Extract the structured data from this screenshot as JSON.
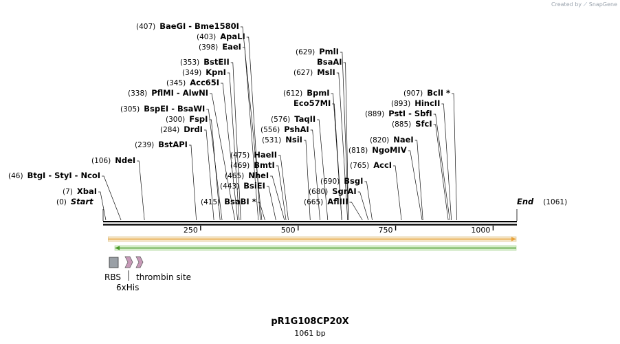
{
  "credit": {
    "prefix": "Created by",
    "brand": "SnapGene"
  },
  "map": {
    "name": "pR1G108CP20X",
    "length_label": "1061 bp",
    "length": 1061
  },
  "ruler": {
    "ticks": [
      250,
      500,
      750,
      1000
    ]
  },
  "ends": {
    "start": {
      "label": "Start",
      "pos": "(0)"
    },
    "end": {
      "label": "End",
      "pos": "(1061)"
    }
  },
  "sites": [
    {
      "pos": 0,
      "pos_text": "(0)",
      "names": "Start",
      "kind": "start"
    },
    {
      "pos": 7,
      "pos_text": "(7)",
      "names": "XbaI"
    },
    {
      "pos": 46,
      "pos_text": "(46)",
      "names": "BtgI  - StyI  - NcoI"
    },
    {
      "pos": 106,
      "pos_text": "(106)",
      "names": "NdeI"
    },
    {
      "pos": 239,
      "pos_text": "(239)",
      "names": "BstAPI"
    },
    {
      "pos": 284,
      "pos_text": "(284)",
      "names": "DrdI"
    },
    {
      "pos": 300,
      "pos_text": "(300)",
      "names": "FspI"
    },
    {
      "pos": 305,
      "pos_text": "(305)",
      "names": "BspEI  - BsaWI"
    },
    {
      "pos": 338,
      "pos_text": "(338)",
      "names": "PflMI  - AlwNI"
    },
    {
      "pos": 345,
      "pos_text": "(345)",
      "names": "Acc65I"
    },
    {
      "pos": 349,
      "pos_text": "(349)",
      "names": "KpnI"
    },
    {
      "pos": 353,
      "pos_text": "(353)",
      "names": "BstEII"
    },
    {
      "pos": 398,
      "pos_text": "(398)",
      "names": "EaeI"
    },
    {
      "pos": 403,
      "pos_text": "(403)",
      "names": "ApaLI"
    },
    {
      "pos": 407,
      "pos_text": "(407)",
      "names": "BaeGI  - Bme1580I"
    },
    {
      "pos": 415,
      "pos_text": "(415)",
      "names": "BsaBI *"
    },
    {
      "pos": 443,
      "pos_text": "(443)",
      "names": "BsiEI"
    },
    {
      "pos": 465,
      "pos_text": "(465)",
      "names": "NheI"
    },
    {
      "pos": 469,
      "pos_text": "(469)",
      "names": "BmtI"
    },
    {
      "pos": 475,
      "pos_text": "(475)",
      "names": "HaeII"
    },
    {
      "pos": 531,
      "pos_text": "(531)",
      "names": "NsiI"
    },
    {
      "pos": 556,
      "pos_text": "(556)",
      "names": "PshAI"
    },
    {
      "pos": 576,
      "pos_text": "(576)",
      "names": "TaqII"
    },
    {
      "pos": 612,
      "pos_text": "(612)",
      "names": "BpmI"
    },
    {
      "pos": 612,
      "pos_text": "",
      "names": "Eco57MI"
    },
    {
      "pos": 627,
      "pos_text": "(627)",
      "names": "MslI"
    },
    {
      "pos": 629,
      "pos_text": "",
      "names": "BsaAI"
    },
    {
      "pos": 629,
      "pos_text": "(629)",
      "names": "PmlI"
    },
    {
      "pos": 665,
      "pos_text": "(665)",
      "names": "AflIII"
    },
    {
      "pos": 680,
      "pos_text": "(680)",
      "names": "SgrAI"
    },
    {
      "pos": 690,
      "pos_text": "(690)",
      "names": "BsgI"
    },
    {
      "pos": 765,
      "pos_text": "(765)",
      "names": "AccI"
    },
    {
      "pos": 818,
      "pos_text": "(818)",
      "names": "NgoMIV"
    },
    {
      "pos": 820,
      "pos_text": "(820)",
      "names": "NaeI"
    },
    {
      "pos": 885,
      "pos_text": "(885)",
      "names": "SfcI"
    },
    {
      "pos": 889,
      "pos_text": "(889)",
      "names": "PstI  - SbfI"
    },
    {
      "pos": 893,
      "pos_text": "(893)",
      "names": "HincII"
    },
    {
      "pos": 907,
      "pos_text": "(907)",
      "names": "BclI *"
    },
    {
      "pos": 1061,
      "pos_text": "(1061)",
      "names": "End",
      "kind": "end"
    }
  ],
  "features": [
    {
      "name": "RBS",
      "type": "box",
      "color": "#9aa0a6"
    },
    {
      "name": "6xHis",
      "type": "arrow",
      "color": "#c79ab8"
    },
    {
      "name": "thrombin site",
      "type": "arrow",
      "color": "#c79ab8"
    }
  ],
  "orf_colors": {
    "forward": "#e8a23a",
    "reverse": "#4a9a2a"
  }
}
